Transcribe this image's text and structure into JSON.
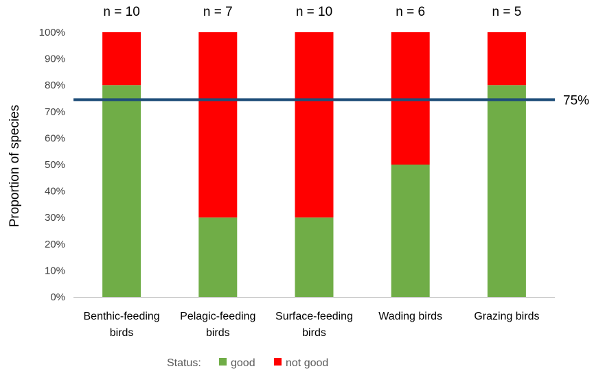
{
  "chart_data": {
    "type": "bar",
    "stacked": true,
    "categories": [
      [
        "Benthic-feeding",
        "birds"
      ],
      [
        "Pelagic-feeding",
        "birds"
      ],
      [
        "Surface-feeding",
        "birds"
      ],
      [
        "Wading birds"
      ],
      [
        "Grazing birds"
      ]
    ],
    "counts": [
      "n = 10",
      "n = 7",
      "n = 10",
      "n = 6",
      "n = 5"
    ],
    "series": [
      {
        "name": "good",
        "values": [
          80,
          30,
          30,
          50,
          80
        ],
        "color": "#70ad47"
      },
      {
        "name": "not good",
        "values": [
          20,
          70,
          70,
          50,
          20
        ],
        "color": "#ff0000"
      }
    ],
    "ylabel": "Proportion of species",
    "ylim": [
      0,
      100
    ],
    "yticks": [
      0,
      10,
      20,
      30,
      40,
      50,
      60,
      70,
      80,
      90,
      100
    ],
    "ytick_suffix": "%",
    "threshold": {
      "value": 74.5,
      "label": "75%",
      "color": "#1f4e79"
    },
    "legend": {
      "title": "Status:",
      "placement": "bottom"
    },
    "grid": false
  }
}
